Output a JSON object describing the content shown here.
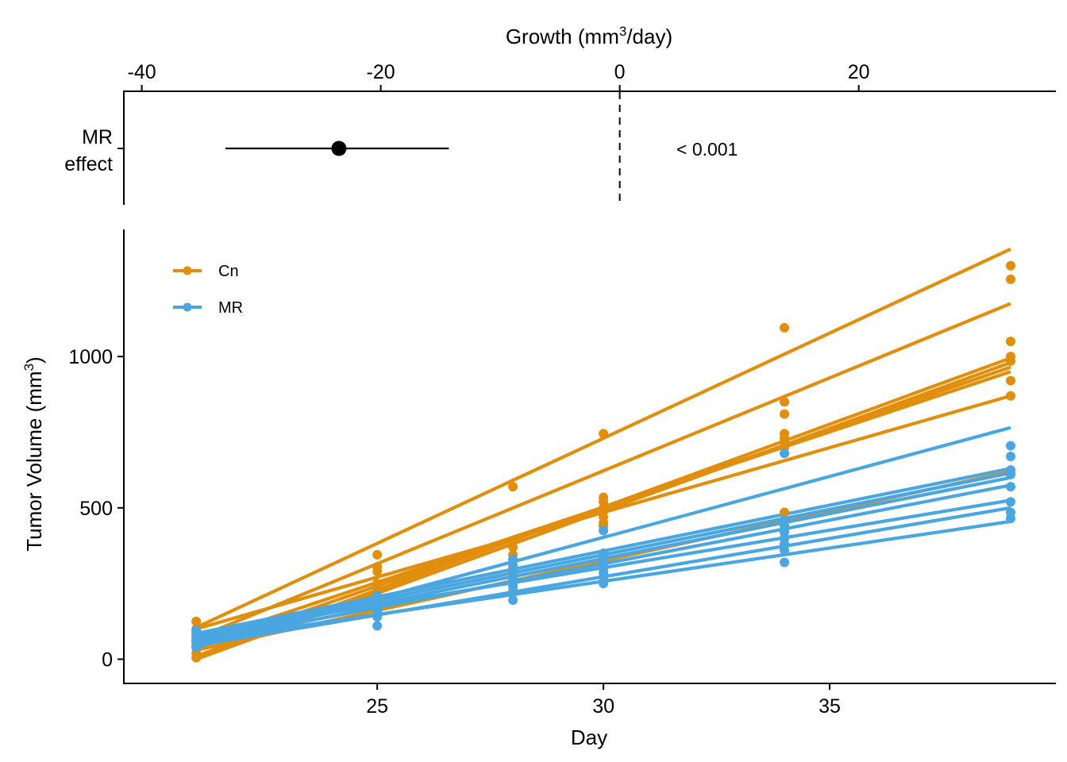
{
  "chart_data": [
    {
      "type": "forest",
      "title": "",
      "xlabel": "Growth (mm3/day)",
      "xlabel_parts": {
        "main": "Growth ",
        "open": "(",
        "unit": "mm",
        "sup": "3",
        "rest": "/day",
        "close": ")"
      },
      "xlim": [
        -41.5,
        36.5
      ],
      "xticks": [
        -40,
        -20,
        0,
        20
      ],
      "xtick_labels": [
        "-40",
        "-20",
        "0",
        "20"
      ],
      "axis_position": "top",
      "reference_line": 0,
      "rows": [
        {
          "label_lines": [
            "MR",
            "effect"
          ],
          "estimate": -23.5,
          "ci_low": -33.0,
          "ci_high": -14.3,
          "p_label": "< 0.001"
        }
      ]
    },
    {
      "type": "line",
      "xlabel": "Day",
      "ylabel": "Tumor Volume (mm3)",
      "ylabel_parts": {
        "main": "Tumor Volume ",
        "open": "(",
        "unit": "mm",
        "sup": "3",
        "close": ")"
      },
      "xlim": [
        19.4,
        40.0
      ],
      "ylim": [
        -80,
        1420
      ],
      "xticks": [
        25,
        30,
        35
      ],
      "xtick_labels": [
        "25",
        "30",
        "35"
      ],
      "yticks": [
        0,
        500,
        1000
      ],
      "ytick_labels": [
        "0",
        "500",
        "1000"
      ],
      "grid": false,
      "legend": {
        "position": "top-left",
        "entries": [
          {
            "name": "Cn",
            "color": "#E08E0B"
          },
          {
            "name": "MR",
            "color": "#4AA6E0"
          }
        ]
      },
      "days": [
        21,
        25,
        28,
        30,
        34,
        39
      ],
      "series": [
        {
          "name": "Cn",
          "color": "#E08E0B",
          "lines": [
            [
              [
                21,
                105
              ],
              [
                39,
                1355
              ]
            ],
            [
              [
                21,
                70
              ],
              [
                39,
                1175
              ]
            ],
            [
              [
                21,
                10
              ],
              [
                39,
                995
              ]
            ],
            [
              [
                21,
                0
              ],
              [
                39,
                980
              ]
            ],
            [
              [
                21,
                35
              ],
              [
                39,
                965
              ]
            ],
            [
              [
                21,
                55
              ],
              [
                39,
                950
              ]
            ],
            [
              [
                21,
                100
              ],
              [
                39,
                870
              ]
            ],
            [
              [
                21,
                30
              ],
              [
                39,
                620
              ]
            ]
          ],
          "points": [
            [
              21,
              125
            ],
            [
              21,
              100
            ],
            [
              21,
              90
            ],
            [
              21,
              70
            ],
            [
              21,
              55
            ],
            [
              21,
              40
            ],
            [
              21,
              20
            ],
            [
              21,
              5
            ],
            [
              25,
              345
            ],
            [
              25,
              305
            ],
            [
              25,
              290
            ],
            [
              25,
              250
            ],
            [
              25,
              235
            ],
            [
              25,
              200
            ],
            [
              25,
              175
            ],
            [
              25,
              160
            ],
            [
              28,
              570
            ],
            [
              28,
              390
            ],
            [
              28,
              370
            ],
            [
              28,
              345
            ],
            [
              28,
              300
            ],
            [
              28,
              280
            ],
            [
              28,
              250
            ],
            [
              28,
              225
            ],
            [
              30,
              745
            ],
            [
              30,
              535
            ],
            [
              30,
              520
            ],
            [
              30,
              500
            ],
            [
              30,
              490
            ],
            [
              30,
              470
            ],
            [
              30,
              450
            ],
            [
              30,
              440
            ],
            [
              34,
              1095
            ],
            [
              34,
              850
            ],
            [
              34,
              810
            ],
            [
              34,
              745
            ],
            [
              34,
              730
            ],
            [
              34,
              720
            ],
            [
              34,
              700
            ],
            [
              34,
              485
            ],
            [
              39,
              1300
            ],
            [
              39,
              1255
            ],
            [
              39,
              1050
            ],
            [
              39,
              1000
            ],
            [
              39,
              985
            ],
            [
              39,
              920
            ],
            [
              39,
              870
            ],
            [
              39,
              620
            ]
          ]
        },
        {
          "name": "MR",
          "color": "#4AA6E0",
          "lines": [
            [
              [
                21,
                40
              ],
              [
                39,
                765
              ]
            ],
            [
              [
                21,
                85
              ],
              [
                39,
                630
              ]
            ],
            [
              [
                21,
                75
              ],
              [
                39,
                615
              ]
            ],
            [
              [
                21,
                65
              ],
              [
                39,
                600
              ]
            ],
            [
              [
                21,
                55
              ],
              [
                39,
                575
              ]
            ],
            [
              [
                21,
                80
              ],
              [
                39,
                525
              ]
            ],
            [
              [
                21,
                45
              ],
              [
                39,
                500
              ]
            ],
            [
              [
                21,
                60
              ],
              [
                39,
                455
              ]
            ]
          ],
          "points": [
            [
              21,
              95
            ],
            [
              21,
              85
            ],
            [
              21,
              75
            ],
            [
              21,
              70
            ],
            [
              21,
              60
            ],
            [
              21,
              55
            ],
            [
              21,
              45
            ],
            [
              21,
              40
            ],
            [
              25,
              210
            ],
            [
              25,
              195
            ],
            [
              25,
              180
            ],
            [
              25,
              170
            ],
            [
              25,
              160
            ],
            [
              25,
              150
            ],
            [
              25,
              140
            ],
            [
              25,
              110
            ],
            [
              28,
              330
            ],
            [
              28,
              310
            ],
            [
              28,
              290
            ],
            [
              28,
              270
            ],
            [
              28,
              255
            ],
            [
              28,
              240
            ],
            [
              28,
              220
            ],
            [
              28,
              195
            ],
            [
              30,
              425
            ],
            [
              30,
              350
            ],
            [
              30,
              340
            ],
            [
              30,
              320
            ],
            [
              30,
              300
            ],
            [
              30,
              285
            ],
            [
              30,
              270
            ],
            [
              30,
              250
            ],
            [
              34,
              680
            ],
            [
              34,
              460
            ],
            [
              34,
              440
            ],
            [
              34,
              420
            ],
            [
              34,
              400
            ],
            [
              34,
              380
            ],
            [
              34,
              360
            ],
            [
              34,
              320
            ],
            [
              39,
              705
            ],
            [
              39,
              670
            ],
            [
              39,
              625
            ],
            [
              39,
              610
            ],
            [
              39,
              570
            ],
            [
              39,
              520
            ],
            [
              39,
              485
            ],
            [
              39,
              465
            ]
          ]
        }
      ]
    }
  ]
}
